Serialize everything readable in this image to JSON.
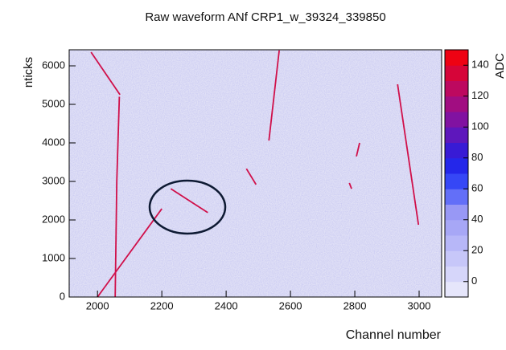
{
  "chart_data": {
    "type": "heatmap",
    "title": "Raw waveform ANf CRP1_w_39324_339850",
    "x_label": "Channel number",
    "y_label": "nticks",
    "z_label": "ADC",
    "xlim": [
      1912,
      3070
    ],
    "ylim": [
      0,
      6417
    ],
    "zlim": [
      -10,
      150
    ],
    "xticks": [
      2000,
      2200,
      2400,
      2600,
      2800,
      3000
    ],
    "yticks": [
      0,
      1000,
      2000,
      3000,
      4000,
      5000,
      6000
    ],
    "zticks": [
      0,
      20,
      40,
      60,
      80,
      100,
      120,
      140
    ],
    "track_color": "#d0104a",
    "tracks": [
      {
        "x": [
          1980,
          2070
        ],
        "y": [
          6354,
          5250
        ]
      },
      {
        "x": [
          2068,
          2060,
          2055
        ],
        "y": [
          5200,
          3000,
          0
        ]
      },
      {
        "x": [
          2000,
          2200
        ],
        "y": [
          0,
          2290
        ]
      },
      {
        "x": [
          2228,
          2343
        ],
        "y": [
          2810,
          2190
        ]
      },
      {
        "x": [
          2463,
          2493
        ],
        "y": [
          3330,
          2920
        ]
      },
      {
        "x": [
          2565,
          2533
        ],
        "y": [
          6400,
          4060
        ]
      },
      {
        "x": [
          2815,
          2805
        ],
        "y": [
          4000,
          3650
        ]
      },
      {
        "x": [
          2783,
          2790
        ],
        "y": [
          2960,
          2810
        ]
      },
      {
        "x": [
          2933,
          2998
        ],
        "y": [
          5520,
          1875
        ]
      }
    ]
  }
}
